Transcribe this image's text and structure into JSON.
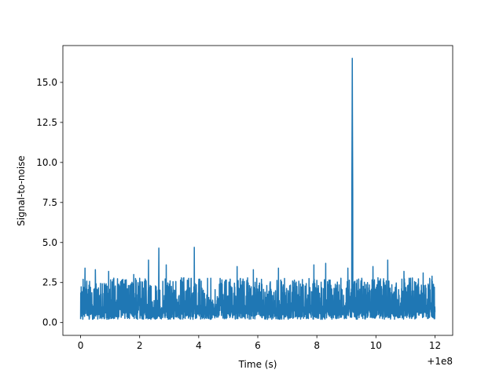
{
  "chart_data": {
    "type": "line",
    "title": "",
    "xlabel": "Time (s)",
    "ylabel": "Signal-to-noise",
    "x_offset_label": "+1e8",
    "xlim": [
      -0.6,
      12.6
    ],
    "ylim": [
      -0.8,
      17.3
    ],
    "x_ticks": [
      0,
      2,
      4,
      6,
      8,
      10,
      12
    ],
    "x_tick_labels": [
      "0",
      "2",
      "4",
      "6",
      "8",
      "10",
      "12"
    ],
    "y_ticks": [
      0.0,
      2.5,
      5.0,
      7.5,
      10.0,
      12.5,
      15.0
    ],
    "y_tick_labels": [
      "0.0",
      "2.5",
      "5.0",
      "7.5",
      "10.0",
      "12.5",
      "15.0"
    ],
    "grid": false,
    "legend": "none",
    "series": [
      {
        "color": "#1f77b4",
        "x_range": [
          0,
          12
        ],
        "typical_range": [
          0.2,
          2.8
        ],
        "peaks": [
          {
            "x": 0.15,
            "y": 3.4
          },
          {
            "x": 0.5,
            "y": 3.3
          },
          {
            "x": 0.95,
            "y": 3.2
          },
          {
            "x": 1.8,
            "y": 3.0
          },
          {
            "x": 2.3,
            "y": 3.9
          },
          {
            "x": 2.65,
            "y": 4.65
          },
          {
            "x": 2.9,
            "y": 3.6
          },
          {
            "x": 3.85,
            "y": 4.7
          },
          {
            "x": 5.3,
            "y": 3.5
          },
          {
            "x": 5.85,
            "y": 3.3
          },
          {
            "x": 6.7,
            "y": 3.4
          },
          {
            "x": 7.9,
            "y": 3.6
          },
          {
            "x": 8.3,
            "y": 3.7
          },
          {
            "x": 9.05,
            "y": 3.4
          },
          {
            "x": 9.2,
            "y": 16.5
          },
          {
            "x": 9.9,
            "y": 3.5
          },
          {
            "x": 10.4,
            "y": 3.9
          },
          {
            "x": 10.95,
            "y": 3.2
          },
          {
            "x": 11.6,
            "y": 3.1
          },
          {
            "x": 11.9,
            "y": 2.9
          }
        ]
      }
    ]
  }
}
